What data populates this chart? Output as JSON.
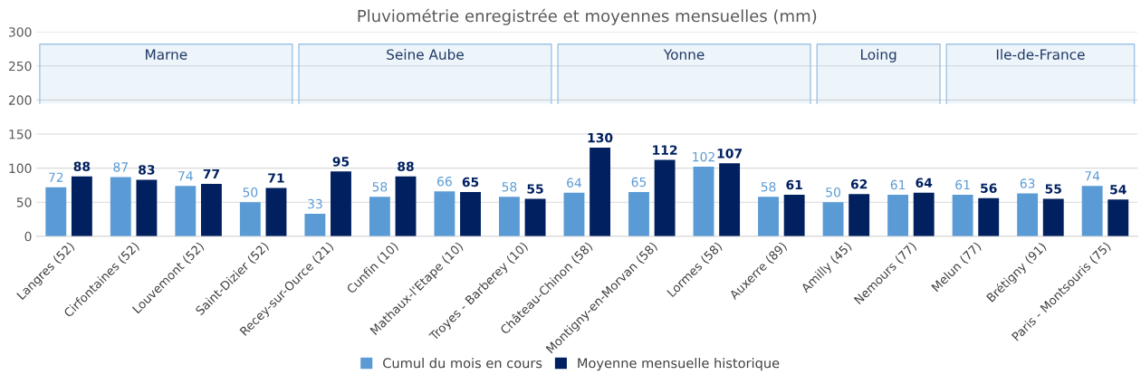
{
  "chart_data": {
    "type": "bar",
    "title": "Pluviométrie enregistrée et moyennes mensuelles (mm)",
    "categories": [
      "Langres (52)",
      "Cirfontaines (52)",
      "Louvemont (52)",
      "Saint-Dizier (52)",
      "Recey-sur-Ource (21)",
      "Cunfin (10)",
      "Mathaux-l'Etape (10)",
      "Troyes - Barberey (10)",
      "Château-Chinon (58)",
      "Montigny-en-Morvan (58)",
      "Lormes (58)",
      "Auxerre (89)",
      "Amilly (45)",
      "Nemours (77)",
      "Melun (77)",
      "Brétigny (91)",
      "Paris - Montsouris (75)"
    ],
    "series": [
      {
        "name": "Cumul du mois en cours",
        "color": "#5b9bd5",
        "values": [
          72,
          87,
          74,
          50,
          33,
          58,
          66,
          58,
          64,
          65,
          102,
          58,
          50,
          61,
          61,
          63,
          74
        ]
      },
      {
        "name": "Moyenne mensuelle historique",
        "color": "#002060",
        "values": [
          88,
          83,
          77,
          71,
          95,
          88,
          65,
          55,
          130,
          112,
          107,
          61,
          62,
          64,
          56,
          55,
          54
        ]
      }
    ],
    "ylim": [
      0,
      300
    ],
    "yticks": [
      0,
      50,
      100,
      150,
      200,
      250,
      300
    ],
    "grid": "y",
    "legend": "bottom",
    "data_labels": true,
    "bands": [
      {
        "axis": "x",
        "from": "Langres (52)",
        "to": "Saint-Dizier (52)",
        "label": "Marne",
        "color": "#9dc3e6"
      },
      {
        "axis": "x",
        "from": "Recey-sur-Ource (21)",
        "to": "Troyes - Barberey (10)",
        "label": "Seine Aube",
        "color": "#9dc3e6"
      },
      {
        "axis": "x",
        "from": "Château-Chinon (58)",
        "to": "Auxerre (89)",
        "label": "Yonne",
        "color": "#9dc3e6"
      },
      {
        "axis": "x",
        "from": "Amilly (45)",
        "to": "Nemours (77)",
        "label": "Loing",
        "color": "#9dc3e6"
      },
      {
        "axis": "x",
        "from": "Melun (77)",
        "to": "Paris - Montsouris (75)",
        "label": "Ile-de-France",
        "color": "#9dc3e6"
      }
    ]
  }
}
